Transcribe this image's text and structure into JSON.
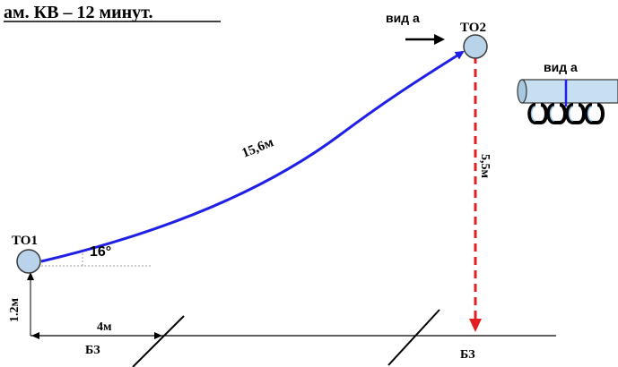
{
  "header": {
    "text": "ам. КВ – 12 минут."
  },
  "points": {
    "to1": {
      "label": "ТО1"
    },
    "to2": {
      "label": "ТО2"
    }
  },
  "labels": {
    "view_a_top": "вид а",
    "view_a_side": "вид а",
    "angle": "16°",
    "span_length": "15,6м",
    "drop_length": "5,5м",
    "height": "1.2м",
    "horizontal": "4м",
    "bz_left": "БЗ",
    "bz_right": "БЗ"
  },
  "colors": {
    "rope": "#1f1fe6",
    "drop": "#e02020",
    "node_fill": "#b9d3ea",
    "node_stroke": "#3b3b3b",
    "ink": "#000000"
  }
}
